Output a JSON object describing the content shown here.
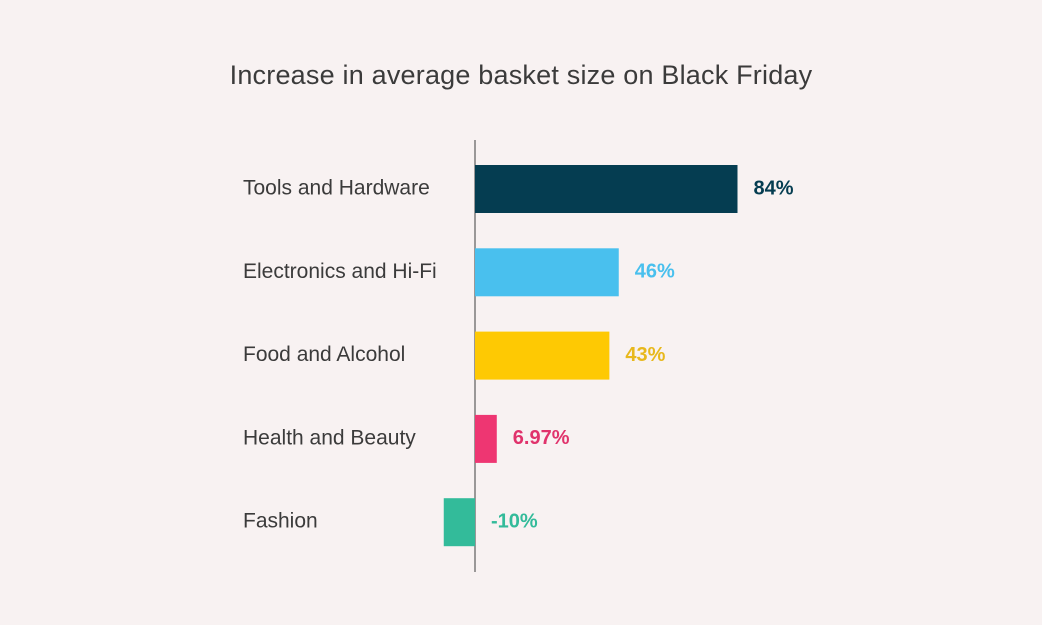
{
  "chart_data": {
    "type": "bar",
    "orientation": "horizontal",
    "title": "Increase in average basket size on Black Friday",
    "categories": [
      "Tools and Hardware",
      "Electronics and Hi-Fi",
      "Food and Alcohol",
      "Health and Beauty",
      "Fashion"
    ],
    "values": [
      84,
      46,
      43,
      6.97,
      -10
    ],
    "value_labels": [
      "84%",
      "46%",
      "43%",
      "6.97%",
      "-10%"
    ],
    "colors": [
      "#053d51",
      "#49c0ee",
      "#fec903",
      "#ee3672",
      "#33bb9a"
    ],
    "label_colors": [
      "#053d51",
      "#49c0ee",
      "#e8b81c",
      "#e0336c",
      "#33bb9a"
    ],
    "xlabel": "",
    "ylabel": "",
    "grid": false,
    "legend": "none"
  }
}
